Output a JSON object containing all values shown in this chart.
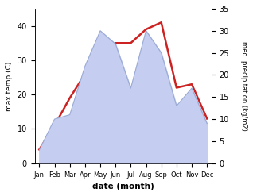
{
  "months": [
    "Jan",
    "Feb",
    "Mar",
    "Apr",
    "May",
    "Jun",
    "Jul",
    "Aug",
    "Sep",
    "Oct",
    "Nov",
    "Dec"
  ],
  "temp": [
    4,
    11,
    19,
    26,
    27,
    35,
    35,
    39,
    41,
    22,
    23,
    13
  ],
  "precip": [
    3,
    10,
    11,
    22,
    30,
    27,
    17,
    30,
    25,
    13,
    17,
    9
  ],
  "temp_color": "#cc2222",
  "precip_fill_color": "#c5cef0",
  "precip_line_color": "#9aaad4",
  "ylim_left": [
    0,
    45
  ],
  "ylim_right": [
    0,
    35
  ],
  "yticks_left": [
    0,
    10,
    20,
    30,
    40
  ],
  "yticks_right": [
    0,
    5,
    10,
    15,
    20,
    25,
    30,
    35
  ],
  "ylabel_left": "max temp (C)",
  "ylabel_right": "med. precipitation (kg/m2)",
  "xlabel": "date (month)",
  "bg_color": "#ffffff"
}
